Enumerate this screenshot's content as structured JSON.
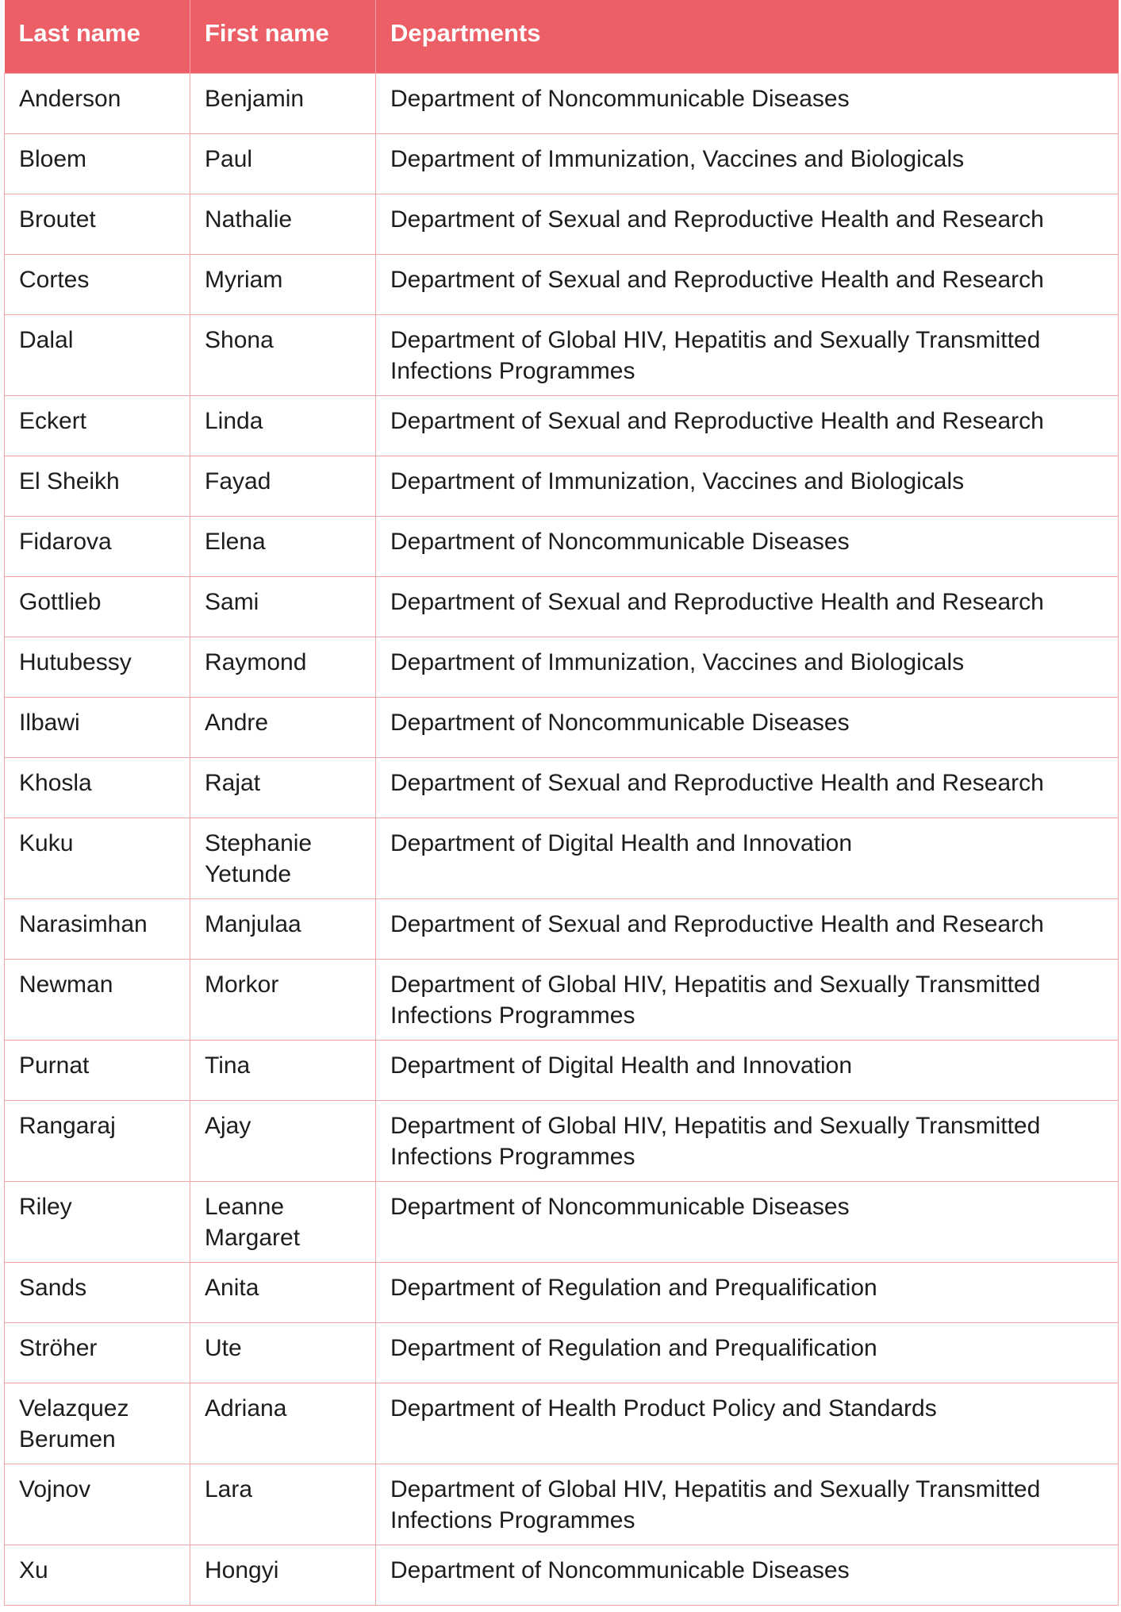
{
  "table": {
    "headers": [
      "Last name",
      "First name",
      "Departments"
    ],
    "header_color": "#ec5f67",
    "border_color": "#f3a4a9",
    "rows": [
      {
        "last": "Anderson",
        "first": "Benjamin",
        "dept": "Department of Noncommunicable Diseases"
      },
      {
        "last": "Bloem",
        "first": "Paul",
        "dept": "Department of Immunization, Vaccines and Biologicals"
      },
      {
        "last": "Broutet",
        "first": "Nathalie",
        "dept": "Department of Sexual and Reproductive Health and Research"
      },
      {
        "last": "Cortes",
        "first": "Myriam",
        "dept": "Department of Sexual and Reproductive Health and Research"
      },
      {
        "last": "Dalal",
        "first": "Shona",
        "dept": "Department of Global HIV, Hepatitis and Sexually Transmitted Infections Programmes"
      },
      {
        "last": "Eckert",
        "first": "Linda",
        "dept": "Department of Sexual and Reproductive Health and Research"
      },
      {
        "last": "El Sheikh",
        "first": "Fayad",
        "dept": "Department of Immunization, Vaccines and Biologicals"
      },
      {
        "last": "Fidarova",
        "first": "Elena",
        "dept": "Department of Noncommunicable Diseases"
      },
      {
        "last": "Gottlieb",
        "first": "Sami",
        "dept": "Department of Sexual and Reproductive Health and Research"
      },
      {
        "last": "Hutubessy",
        "first": "Raymond",
        "dept": "Department of Immunization, Vaccines and Biologicals"
      },
      {
        "last": "Ilbawi",
        "first": "Andre",
        "dept": "Department of Noncommunicable Diseases"
      },
      {
        "last": "Khosla",
        "first": "Rajat",
        "dept": "Department of Sexual and Reproductive Health and Research"
      },
      {
        "last": "Kuku",
        "first": "Stephanie Yetunde",
        "dept": "Department of Digital Health and Innovation"
      },
      {
        "last": "Narasimhan",
        "first": "Manjulaa",
        "dept": "Department of Sexual and Reproductive Health and Research"
      },
      {
        "last": "Newman",
        "first": "Morkor",
        "dept": "Department of Global HIV, Hepatitis and Sexually Transmitted Infections Programmes"
      },
      {
        "last": "Purnat",
        "first": "Tina",
        "dept": "Department of Digital Health and Innovation"
      },
      {
        "last": "Rangaraj",
        "first": "Ajay",
        "dept": "Department of Global HIV, Hepatitis and Sexually Transmitted Infections Programmes"
      },
      {
        "last": "Riley",
        "first": "Leanne Margaret",
        "dept": "Department of Noncommunicable Diseases"
      },
      {
        "last": "Sands",
        "first": "Anita",
        "dept": "Department of Regulation and Prequalification"
      },
      {
        "last": "Ströher",
        "first": "Ute",
        "dept": "Department of Regulation and Prequalification"
      },
      {
        "last": "Velazquez Berumen",
        "first": "Adriana",
        "dept": "Department of Health Product Policy and Standards"
      },
      {
        "last": "Vojnov",
        "first": "Lara",
        "dept": "Department of Global HIV, Hepatitis and Sexually Transmitted Infections Programmes"
      },
      {
        "last": "Xu",
        "first": "Hongyi",
        "dept": "Department of Noncommunicable Diseases"
      }
    ]
  }
}
